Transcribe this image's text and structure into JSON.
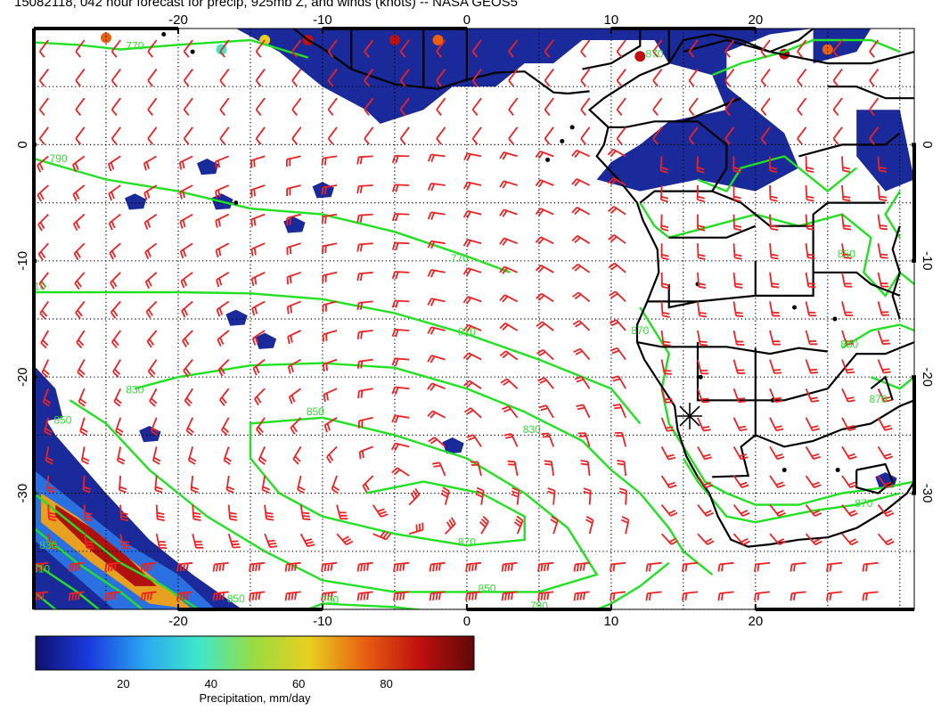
{
  "title": "15082118, 042 hour forecast for precip, 925mb Z, and winds (knots) -- NASA GEOS5",
  "map": {
    "lon_range": [
      -30,
      31
    ],
    "lat_range": [
      -40,
      10
    ],
    "lon_ticks": [
      -20,
      -10,
      0,
      10,
      20
    ],
    "lat_ticks": [
      0,
      -10,
      -20,
      -30
    ],
    "lon_tick_labels": [
      "-20",
      "-10",
      "0",
      "10",
      "20"
    ],
    "lat_tick_labels": [
      "0",
      "-10",
      "-20",
      "-30"
    ],
    "colors": {
      "contour": "#22e022",
      "contour_label": "#33dd33",
      "barb": "#ee2222",
      "coast": "#000000",
      "precip_low": "#1a2a9a"
    }
  },
  "contour_labels": [
    {
      "text": "770",
      "lon": -23,
      "lat": 8.2
    },
    {
      "text": "790",
      "lon": -28.3,
      "lat": -1.5
    },
    {
      "text": "770",
      "lon": -0.5,
      "lat": -10.1
    },
    {
      "text": "810",
      "lon": -29.8,
      "lat": -12.5
    },
    {
      "text": "810",
      "lon": 0,
      "lat": -16.4
    },
    {
      "text": "830",
      "lon": -23,
      "lat": -21.4
    },
    {
      "text": "850",
      "lon": -28,
      "lat": -24
    },
    {
      "text": "850",
      "lon": -10.5,
      "lat": -23.3
    },
    {
      "text": "830",
      "lon": 4.5,
      "lat": -24.8
    },
    {
      "text": "870",
      "lon": 0,
      "lat": -34.5
    },
    {
      "text": "850",
      "lon": 1.4,
      "lat": -38.5
    },
    {
      "text": "830",
      "lon": -29,
      "lat": -34.8
    },
    {
      "text": "810",
      "lon": -29.5,
      "lat": -36.8
    },
    {
      "text": "790",
      "lon": -9.5,
      "lat": -39.5
    },
    {
      "text": "850",
      "lon": -16,
      "lat": -39.4
    },
    {
      "text": "850",
      "lon": 26.3,
      "lat": -9.7
    },
    {
      "text": "850",
      "lon": 26.5,
      "lat": -17.5
    },
    {
      "text": "870",
      "lon": 12,
      "lat": -16.3
    },
    {
      "text": "870",
      "lon": 28.5,
      "lat": -22.2
    },
    {
      "text": "870",
      "lon": 27.5,
      "lat": -31.2
    },
    {
      "text": "790",
      "lon": 5,
      "lat": -40
    },
    {
      "text": "870",
      "lon": 13,
      "lat": 7.5
    }
  ],
  "colorbar": {
    "ticks": [
      20,
      40,
      60,
      80
    ],
    "tick_labels": [
      "20",
      "40",
      "60",
      "80"
    ],
    "min": 0,
    "max": 100,
    "label": "Precipitation, mm/day",
    "stops": [
      "#10106e",
      "#1a3ce0",
      "#2aa8f0",
      "#40e8c8",
      "#9adc40",
      "#e8d020",
      "#e86010",
      "#c01010",
      "#600808"
    ]
  }
}
